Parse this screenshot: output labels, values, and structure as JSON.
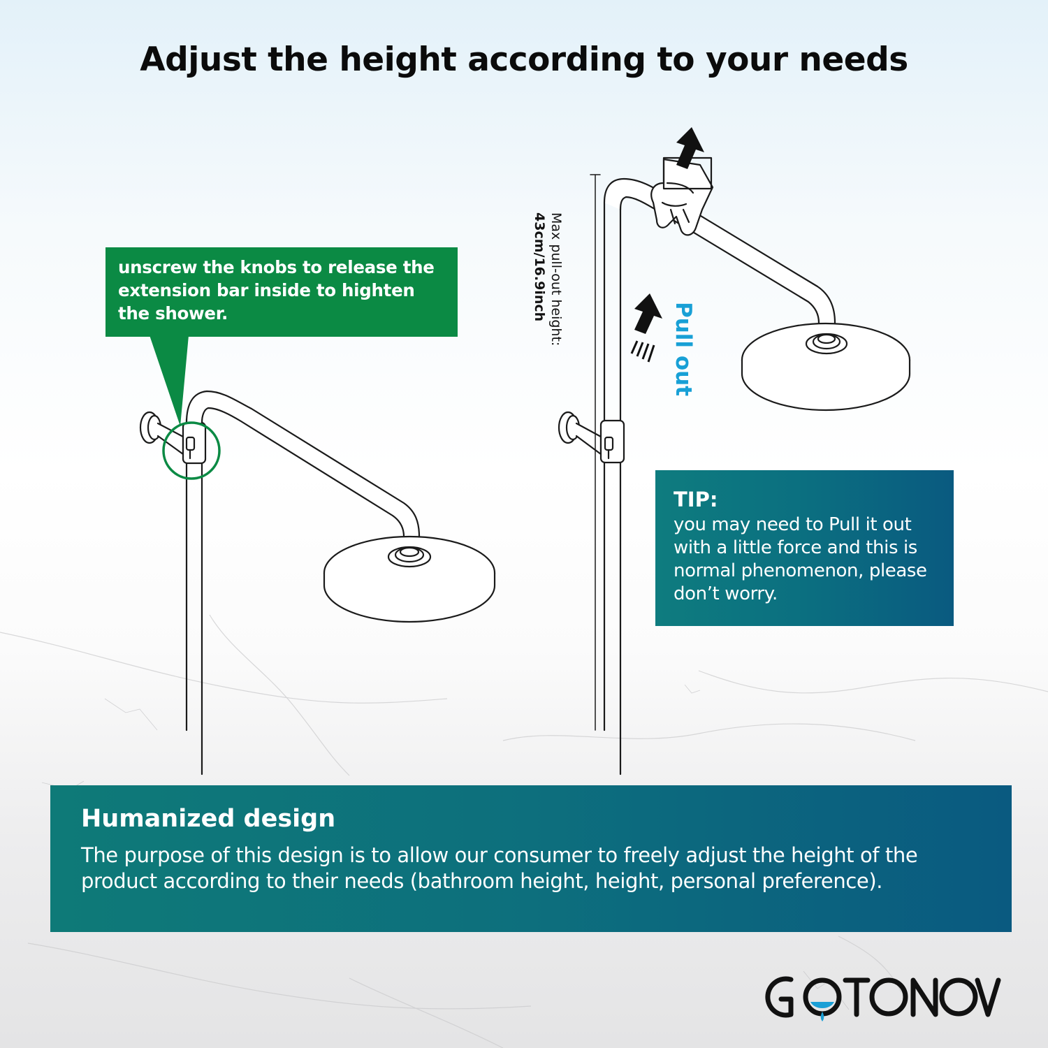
{
  "title": "Adjust the height according to your needs",
  "callout": {
    "text": "unscrew the knobs to release the extension bar inside to highten the shower."
  },
  "measure": {
    "label": "Max pull-out height:",
    "value": "43cm/16.9inch"
  },
  "pull_out": "Pull out",
  "tip": {
    "title": "TIP:",
    "text": "you may need to Pull it out with a little force and this is normal phenomenon, please don’t worry."
  },
  "bottom": {
    "title": "Humanized design",
    "text": "The purpose of this design is to allow our consumer to freely adjust the height of the product according to their needs (bathroom height, height, personal preference)."
  },
  "brand": {
    "logo_text": "GOTONOVO",
    "accent_color": "#1a9fd6"
  },
  "colors": {
    "green": "#0b8a44",
    "teal": "#0d6f7d",
    "blue_text": "#18a0d6"
  }
}
